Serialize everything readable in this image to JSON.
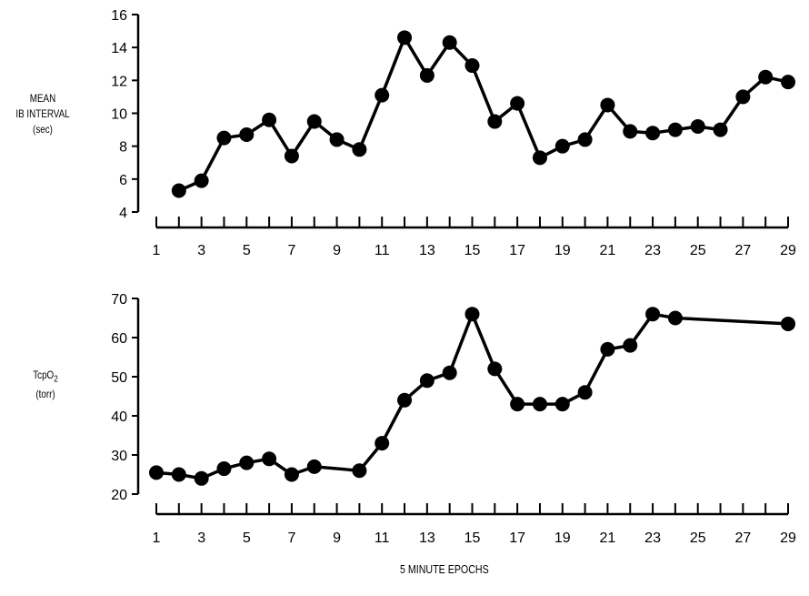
{
  "chart_data": [
    {
      "type": "line",
      "ylabel_lines": [
        "MEAN",
        "IB INTERVAL",
        "(sec)"
      ],
      "xlabel": "",
      "xlim": [
        1,
        29
      ],
      "ylim": [
        4,
        16
      ],
      "xticks": [
        1,
        3,
        5,
        7,
        9,
        11,
        13,
        15,
        17,
        19,
        21,
        23,
        25,
        27,
        29
      ],
      "yticks": [
        4,
        6,
        8,
        10,
        12,
        14,
        16
      ],
      "series": [
        {
          "x": [
            2,
            3,
            4,
            5,
            6,
            7,
            8,
            9,
            10,
            11,
            12,
            13,
            14,
            15,
            16,
            17,
            18,
            19,
            20,
            21,
            22,
            23,
            24,
            25,
            26,
            27,
            28,
            29
          ],
          "y": [
            5.3,
            5.9,
            8.5,
            8.7,
            9.6,
            7.4,
            9.5,
            8.4,
            7.8,
            11.1,
            14.6,
            12.3,
            14.3,
            12.9,
            9.5,
            10.6,
            7.3,
            8.0,
            8.4,
            10.5,
            8.9,
            8.8,
            9.0,
            9.2,
            9.0,
            11.0,
            12.2,
            11.9
          ]
        }
      ]
    },
    {
      "type": "line",
      "ylabel_main": "TcpO",
      "ylabel_sub": "2",
      "ylabel_unit": "(torr)",
      "xlabel": "5 MINUTE EPOCHS",
      "xlim": [
        1,
        29
      ],
      "ylim": [
        20,
        70
      ],
      "xticks": [
        1,
        3,
        5,
        7,
        9,
        11,
        13,
        15,
        17,
        19,
        21,
        23,
        25,
        27,
        29
      ],
      "yticks": [
        20,
        30,
        40,
        50,
        60,
        70
      ],
      "series": [
        {
          "x": [
            1,
            2,
            3,
            4,
            5,
            6,
            7,
            8,
            10,
            11,
            12,
            13,
            14,
            15,
            16,
            17,
            18,
            19,
            20,
            21,
            22,
            23,
            24,
            29
          ],
          "y": [
            25.5,
            25,
            24,
            26.5,
            28,
            29,
            25,
            27,
            26,
            33,
            44,
            49,
            51,
            66,
            52,
            43,
            43,
            43,
            46,
            57,
            58,
            66,
            65,
            63.5
          ]
        }
      ]
    }
  ]
}
